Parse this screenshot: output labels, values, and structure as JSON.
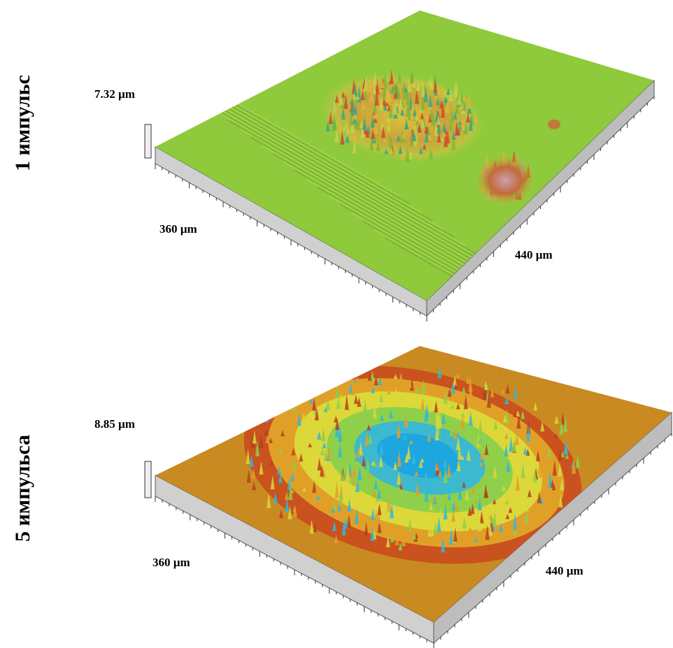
{
  "panels": [
    {
      "pulse_label": "1 импульс",
      "height": "7.32 µm",
      "size_x": "360 µm",
      "size_y": "440 µm"
    },
    {
      "pulse_label": "5 импульса",
      "height": "8.85 µm",
      "size_x": "360 µm",
      "size_y": "440 µm"
    }
  ]
}
